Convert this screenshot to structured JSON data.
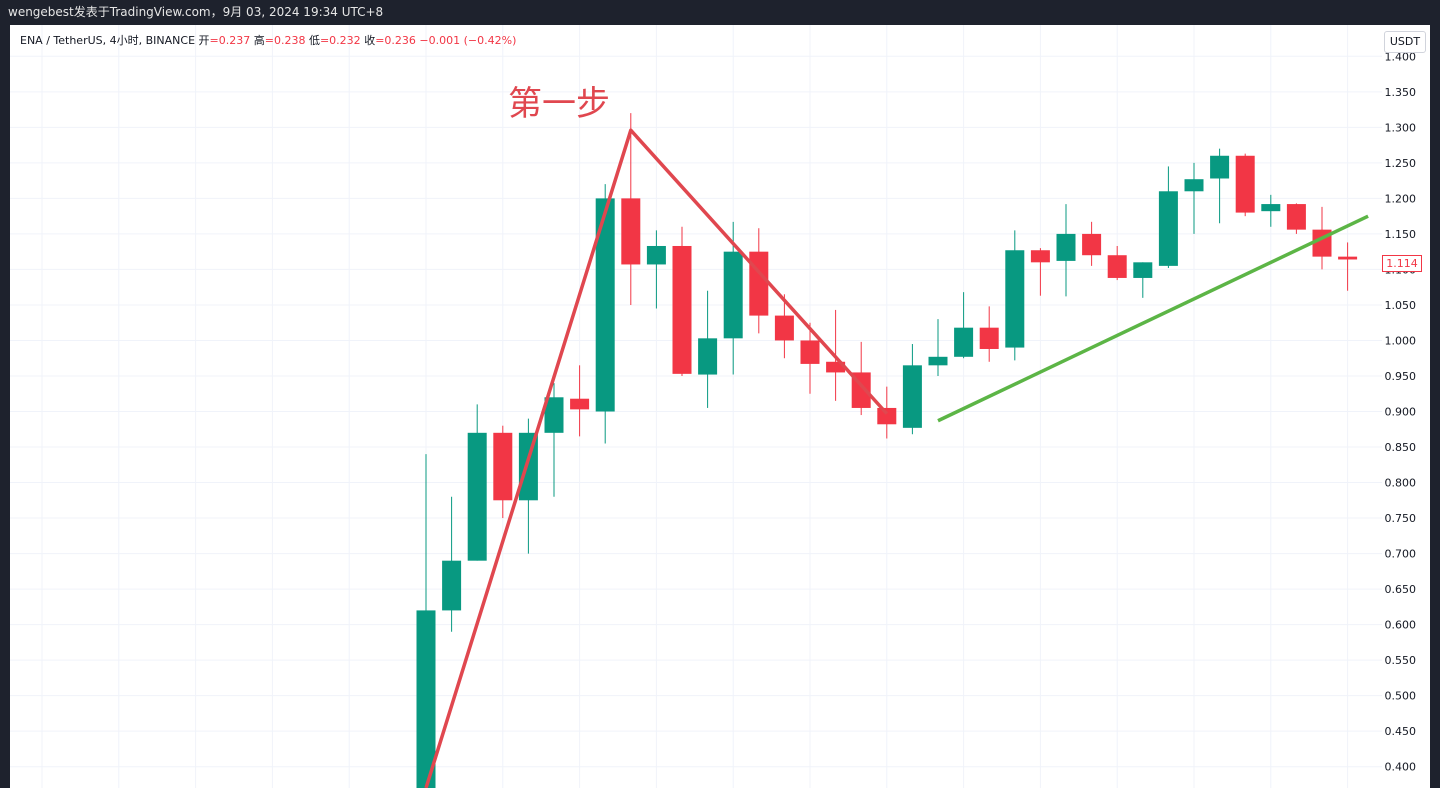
{
  "topbar": {
    "text": "wengebest发表于TradingView.com，9月 03, 2024 19:34 UTC+8"
  },
  "legend": {
    "symbol": "ENA / TetherUS, 4小时, BINANCE",
    "open_label": "开",
    "open": "=0.237",
    "high_label": "高",
    "high": "=0.238",
    "low_label": "低",
    "low": "=0.232",
    "close_label": "收",
    "close": "=0.236",
    "change": "−0.001 (−0.42%)"
  },
  "currency_button": "USDT",
  "annotation": "第一步",
  "last_price": "1.114",
  "colors": {
    "up": "#089981",
    "down": "#f23645",
    "red_line": "#e0474f",
    "green_line": "#5cb546"
  },
  "chart_data": {
    "type": "candlestick",
    "ylim": [
      0.37,
      1.43
    ],
    "yticks": [
      "1.400",
      "1.350",
      "1.300",
      "1.250",
      "1.200",
      "1.150",
      "1.100",
      "1.050",
      "1.000",
      "0.950",
      "0.900",
      "0.850",
      "0.800",
      "0.750",
      "0.700",
      "0.650",
      "0.600",
      "0.550",
      "0.500",
      "0.450",
      "0.400"
    ],
    "candles": [
      {
        "o": 0.37,
        "h": 0.84,
        "l": 0.36,
        "c": 0.62
      },
      {
        "o": 0.62,
        "h": 0.78,
        "l": 0.59,
        "c": 0.69
      },
      {
        "o": 0.69,
        "h": 0.91,
        "l": 0.69,
        "c": 0.87
      },
      {
        "o": 0.87,
        "h": 0.88,
        "l": 0.75,
        "c": 0.775
      },
      {
        "o": 0.775,
        "h": 0.89,
        "l": 0.7,
        "c": 0.87
      },
      {
        "o": 0.87,
        "h": 0.94,
        "l": 0.78,
        "c": 0.92
      },
      {
        "o": 0.918,
        "h": 0.965,
        "l": 0.865,
        "c": 0.903
      },
      {
        "o": 0.9,
        "h": 1.22,
        "l": 0.855,
        "c": 1.2
      },
      {
        "o": 1.2,
        "h": 1.32,
        "l": 1.05,
        "c": 1.107
      },
      {
        "o": 1.107,
        "h": 1.155,
        "l": 1.045,
        "c": 1.133
      },
      {
        "o": 1.133,
        "h": 1.16,
        "l": 0.95,
        "c": 0.953
      },
      {
        "o": 0.952,
        "h": 1.07,
        "l": 0.905,
        "c": 1.003
      },
      {
        "o": 1.003,
        "h": 1.167,
        "l": 0.952,
        "c": 1.125
      },
      {
        "o": 1.125,
        "h": 1.158,
        "l": 1.01,
        "c": 1.035
      },
      {
        "o": 1.035,
        "h": 1.065,
        "l": 0.975,
        "c": 1.0
      },
      {
        "o": 1.0,
        "h": 1.025,
        "l": 0.925,
        "c": 0.967
      },
      {
        "o": 0.97,
        "h": 1.043,
        "l": 0.915,
        "c": 0.955
      },
      {
        "o": 0.955,
        "h": 0.998,
        "l": 0.895,
        "c": 0.905
      },
      {
        "o": 0.905,
        "h": 0.935,
        "l": 0.862,
        "c": 0.882
      },
      {
        "o": 0.877,
        "h": 0.995,
        "l": 0.868,
        "c": 0.965
      },
      {
        "o": 0.965,
        "h": 1.03,
        "l": 0.95,
        "c": 0.977
      },
      {
        "o": 0.977,
        "h": 1.068,
        "l": 0.975,
        "c": 1.018
      },
      {
        "o": 1.018,
        "h": 1.048,
        "l": 0.97,
        "c": 0.988
      },
      {
        "o": 0.99,
        "h": 1.155,
        "l": 0.972,
        "c": 1.127
      },
      {
        "o": 1.127,
        "h": 1.13,
        "l": 1.063,
        "c": 1.11
      },
      {
        "o": 1.112,
        "h": 1.192,
        "l": 1.062,
        "c": 1.15
      },
      {
        "o": 1.15,
        "h": 1.167,
        "l": 1.105,
        "c": 1.12
      },
      {
        "o": 1.12,
        "h": 1.133,
        "l": 1.085,
        "c": 1.088
      },
      {
        "o": 1.088,
        "h": 1.11,
        "l": 1.06,
        "c": 1.11
      },
      {
        "o": 1.105,
        "h": 1.245,
        "l": 1.102,
        "c": 1.21
      },
      {
        "o": 1.21,
        "h": 1.25,
        "l": 1.15,
        "c": 1.227
      },
      {
        "o": 1.228,
        "h": 1.27,
        "l": 1.165,
        "c": 1.26
      },
      {
        "o": 1.26,
        "h": 1.263,
        "l": 1.175,
        "c": 1.18
      },
      {
        "o": 1.182,
        "h": 1.205,
        "l": 1.16,
        "c": 1.192
      },
      {
        "o": 1.192,
        "h": 1.193,
        "l": 1.15,
        "c": 1.156
      },
      {
        "o": 1.156,
        "h": 1.188,
        "l": 1.1,
        "c": 1.118
      },
      {
        "o": 1.118,
        "h": 1.138,
        "l": 1.07,
        "c": 1.114
      }
    ],
    "trendlines": [
      {
        "color": "red",
        "points": [
          [
            0,
            0.37
          ],
          [
            8,
            1.296
          ],
          [
            18,
            0.897
          ]
        ]
      },
      {
        "color": "green",
        "points": [
          [
            20,
            0.887
          ],
          [
            36.8,
            1.175
          ]
        ]
      }
    ]
  }
}
